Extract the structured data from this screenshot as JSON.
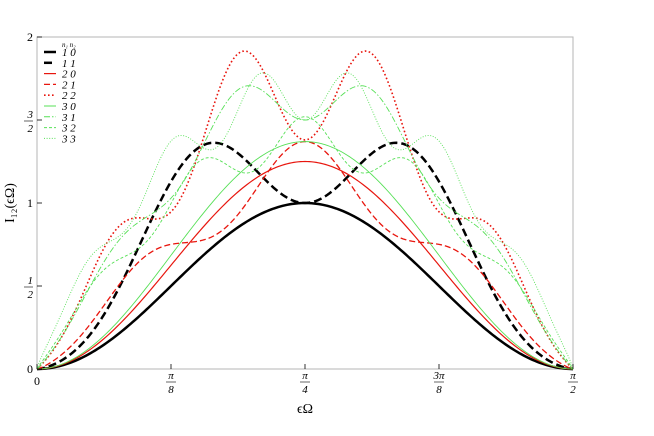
{
  "chart_data": {
    "type": "line",
    "xlabel": "ϵΩ",
    "ylabel": "I₁₂(ϵΩ)",
    "xlim": [
      0,
      1.5708
    ],
    "ylim": [
      0,
      2
    ],
    "x_ticks": [
      {
        "value": 0,
        "label": "0",
        "num": "",
        "den": ""
      },
      {
        "value": 0.3927,
        "label": "",
        "num": "π",
        "den": "8"
      },
      {
        "value": 0.7854,
        "label": "",
        "num": "π",
        "den": "4"
      },
      {
        "value": 1.1781,
        "label": "",
        "num": "3π",
        "den": "8"
      },
      {
        "value": 1.5708,
        "label": "",
        "num": "π",
        "den": "2"
      }
    ],
    "y_ticks": [
      {
        "value": 0,
        "label": "0",
        "num": "",
        "den": ""
      },
      {
        "value": 0.5,
        "label": "",
        "num": "1",
        "den": "2"
      },
      {
        "value": 1,
        "label": "1",
        "num": "",
        "den": ""
      },
      {
        "value": 1.5,
        "label": "",
        "num": "3",
        "den": "2"
      },
      {
        "value": 2,
        "label": "2",
        "num": "",
        "den": ""
      }
    ],
    "legend_header": "n₁ n₂",
    "legend_position": "top-left",
    "series": [
      {
        "name": "1 0",
        "color": "#000000",
        "dash": "solid",
        "width": 2.5,
        "mid": 1.0,
        "dip": 0,
        "peaks": 1
      },
      {
        "name": "1 1",
        "color": "#000000",
        "dash": "long-dash",
        "width": 2.5,
        "mid": 1.0,
        "dip": 0.32,
        "peaks": 2
      },
      {
        "name": "2 0",
        "color": "#e8160e",
        "dash": "solid",
        "width": 1.2,
        "mid": 1.25,
        "dip": 0,
        "peaks": 1
      },
      {
        "name": "2 1",
        "color": "#e8160e",
        "dash": "dash",
        "width": 1.3,
        "mid": 1.37,
        "dip": 0.17,
        "peaks": 3
      },
      {
        "name": "2 2",
        "color": "#e8160e",
        "dash": "dot",
        "width": 1.6,
        "mid": 1.38,
        "dip": 0.2,
        "peaks": 4
      },
      {
        "name": "3 0",
        "color": "#57e057",
        "dash": "solid",
        "width": 0.9,
        "mid": 1.37,
        "dip": 0,
        "peaks": 1
      },
      {
        "name": "3 1",
        "color": "#57e057",
        "dash": "dash-dot",
        "width": 0.9,
        "mid": 1.5,
        "dip": 0.1,
        "peaks": 4
      },
      {
        "name": "3 2",
        "color": "#57e057",
        "dash": "short-dash",
        "width": 0.9,
        "mid": 1.52,
        "dip": 0.1,
        "peaks": 5
      },
      {
        "name": "3 3",
        "color": "#57e057",
        "dash": "fine-dot",
        "width": 0.9,
        "mid": 1.5,
        "dip": 0.1,
        "peaks": 6
      }
    ]
  }
}
